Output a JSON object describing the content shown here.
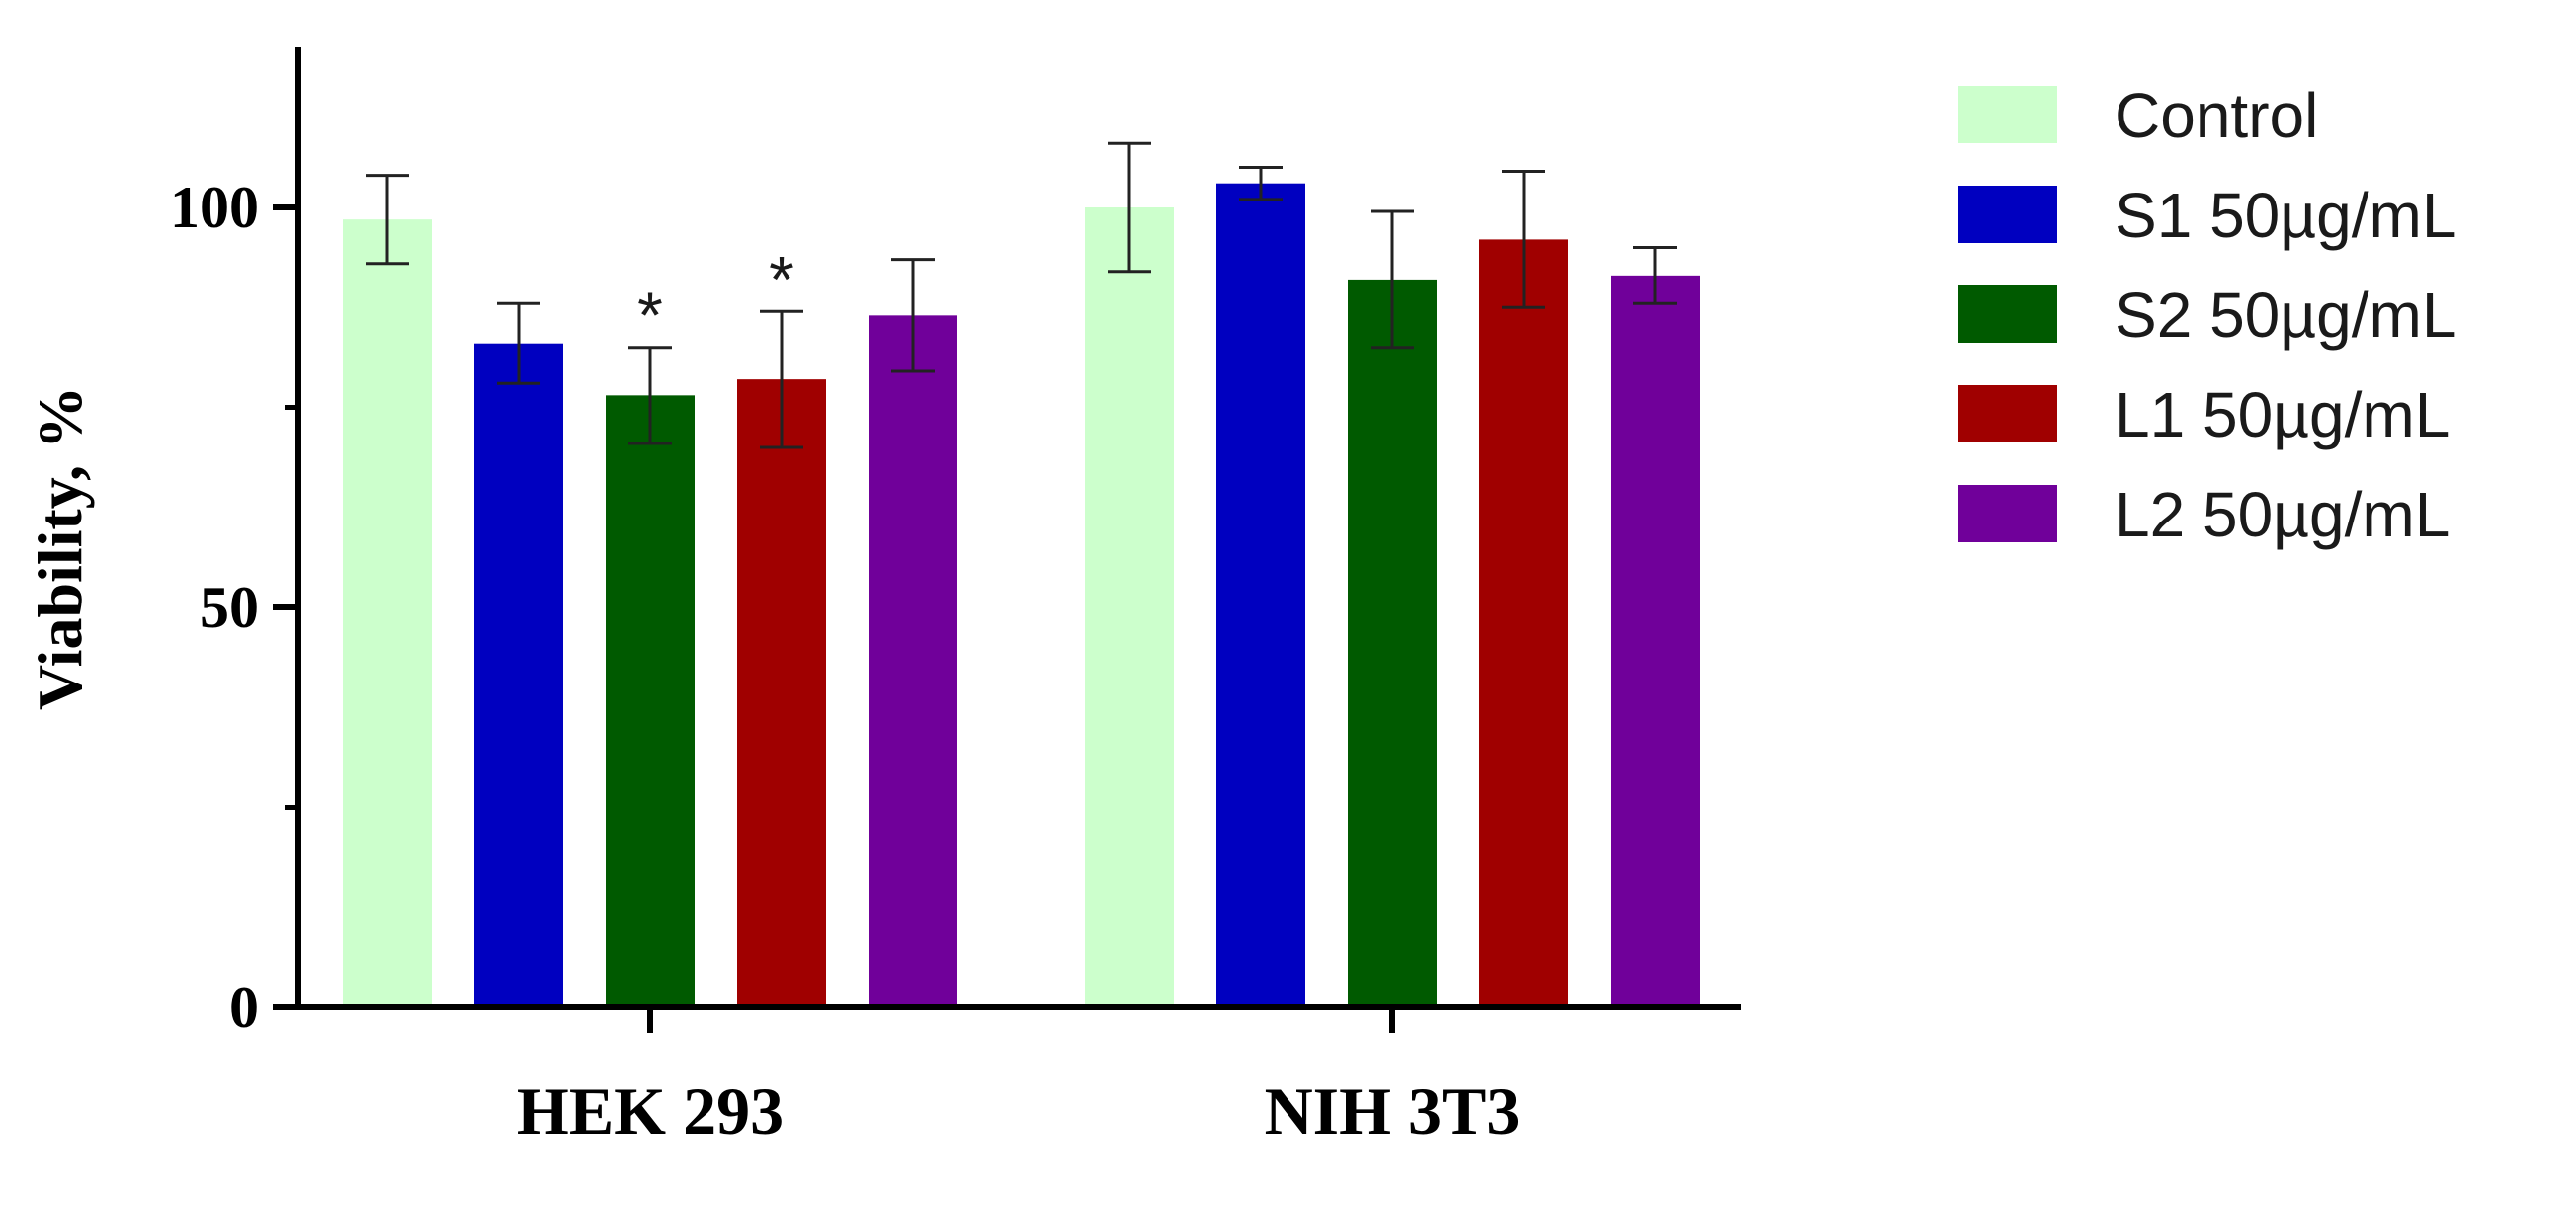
{
  "chart_data": {
    "type": "bar",
    "title": "",
    "xlabel": "",
    "ylabel": "Viability, %",
    "ylim": [
      0,
      120
    ],
    "yticks": [
      0,
      50,
      100
    ],
    "yminor_ticks": [
      25,
      75
    ],
    "grid": false,
    "legend_placement": "right",
    "categories": [
      "HEK 293",
      "NIH 3T3"
    ],
    "series": [
      {
        "name": "Control",
        "color": "#ccffcc",
        "values": [
          98.5,
          100
        ],
        "errors": [
          5.5,
          8
        ],
        "annotations": [
          "",
          ""
        ]
      },
      {
        "name": "S1 50µg/mL",
        "color": "#0000c0",
        "values": [
          83,
          103
        ],
        "errors": [
          5,
          2
        ],
        "annotations": [
          "",
          ""
        ]
      },
      {
        "name": "S2 50µg/mL",
        "color": "#005a00",
        "values": [
          76.5,
          91
        ],
        "errors": [
          6,
          8.5
        ],
        "annotations": [
          "*",
          ""
        ]
      },
      {
        "name": "L1 50µg/mL",
        "color": "#a00000",
        "values": [
          78.5,
          96
        ],
        "errors": [
          8.5,
          8.5
        ],
        "annotations": [
          "*",
          ""
        ]
      },
      {
        "name": "L2 50µg/mL",
        "color": "#70009a",
        "values": [
          86.5,
          91.5
        ],
        "errors": [
          7,
          3.5
        ],
        "annotations": [
          "",
          ""
        ]
      }
    ]
  }
}
